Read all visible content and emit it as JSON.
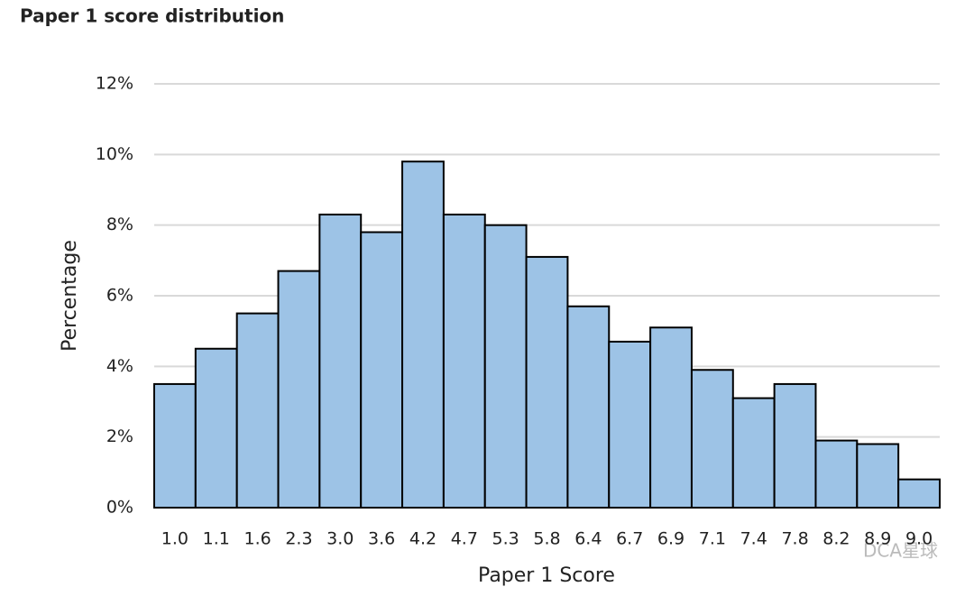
{
  "chart_data": {
    "type": "bar",
    "title": "Paper 1 score distribution",
    "x_label": "Paper 1 Score",
    "y_label": "Percentage",
    "categories": [
      "1.0",
      "1.1",
      "1.6",
      "2.3",
      "3.0",
      "3.6",
      "4.2",
      "4.7",
      "5.3",
      "5.8",
      "6.4",
      "6.7",
      "6.9",
      "7.1",
      "7.4",
      "7.8",
      "8.2",
      "8.9",
      "9.0"
    ],
    "values": [
      3.5,
      4.5,
      5.5,
      6.7,
      8.3,
      7.8,
      9.8,
      8.3,
      8.0,
      7.1,
      5.7,
      4.7,
      5.1,
      3.9,
      3.1,
      3.5,
      1.9,
      1.8,
      0.8
    ],
    "color": "#9dc3e6",
    "ylim": [
      0,
      12
    ],
    "yticks": [
      {
        "value": 0,
        "label": "0%"
      },
      {
        "value": 2,
        "label": "2%"
      },
      {
        "value": 4,
        "label": "4%"
      },
      {
        "value": 6,
        "label": "6%"
      },
      {
        "value": 8,
        "label": "8%"
      },
      {
        "value": 10,
        "label": "10%"
      },
      {
        "value": 12,
        "label": "12%"
      }
    ],
    "grid": true,
    "watermark": "DCA星球"
  }
}
